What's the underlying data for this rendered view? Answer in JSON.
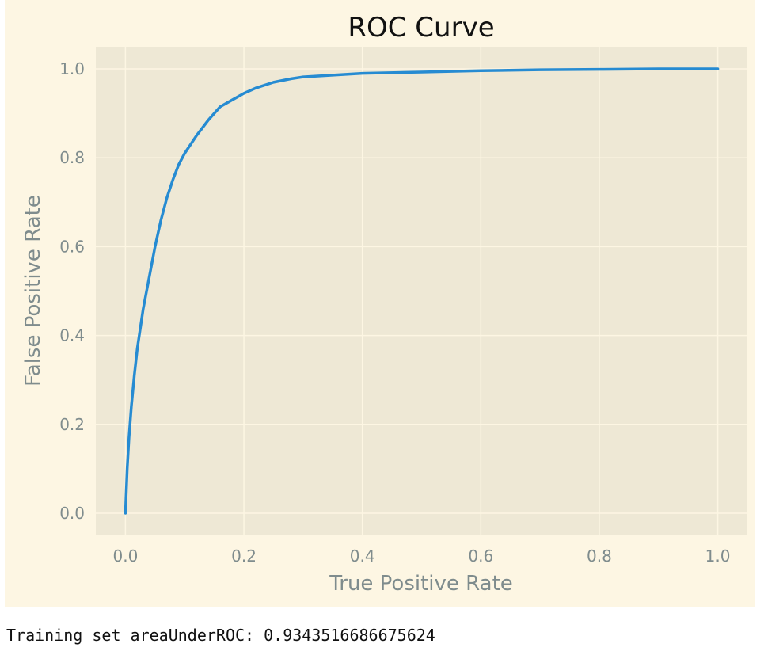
{
  "chart_data": {
    "type": "line",
    "title": "ROC Curve",
    "xlabel": "True Positive Rate",
    "ylabel": "False Positive Rate",
    "xlim": [
      -0.05,
      1.05
    ],
    "ylim": [
      -0.05,
      1.05
    ],
    "grid": true,
    "x_ticks": [
      "0.0",
      "0.2",
      "0.4",
      "0.6",
      "0.8",
      "1.0"
    ],
    "y_ticks": [
      "0.0",
      "0.2",
      "0.4",
      "0.6",
      "0.8",
      "1.0"
    ],
    "series": [
      {
        "color": "#268bd2",
        "x": [
          0.0,
          0.003,
          0.006,
          0.01,
          0.015,
          0.02,
          0.03,
          0.04,
          0.05,
          0.06,
          0.07,
          0.08,
          0.09,
          0.1,
          0.12,
          0.14,
          0.16,
          0.18,
          0.2,
          0.22,
          0.25,
          0.28,
          0.3,
          0.35,
          0.4,
          0.5,
          0.6,
          0.7,
          0.8,
          0.9,
          1.0
        ],
        "y": [
          0.0,
          0.1,
          0.17,
          0.24,
          0.31,
          0.37,
          0.46,
          0.53,
          0.6,
          0.66,
          0.71,
          0.75,
          0.785,
          0.81,
          0.85,
          0.885,
          0.915,
          0.93,
          0.945,
          0.957,
          0.97,
          0.978,
          0.982,
          0.986,
          0.99,
          0.993,
          0.996,
          0.998,
          0.999,
          1.0,
          1.0
        ]
      }
    ]
  },
  "output": {
    "text": "Training set areaUnderROC: 0.9343516686675624"
  }
}
